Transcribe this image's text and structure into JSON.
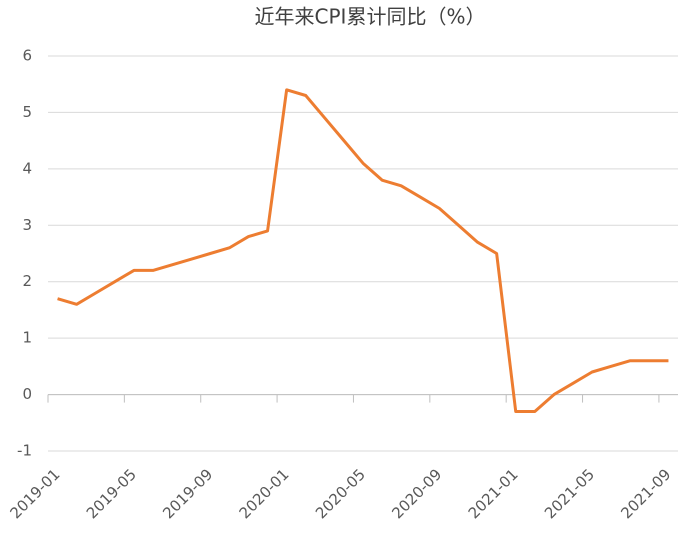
{
  "chart_data": {
    "type": "line",
    "title": "近年来CPI累计同比（%）",
    "categories": [
      "2019-01",
      null,
      null,
      null,
      "2019-05",
      null,
      null,
      null,
      "2019-09",
      null,
      null,
      null,
      "2020-01",
      null,
      null,
      null,
      "2020-05",
      null,
      null,
      null,
      "2020-09",
      null,
      null,
      null,
      "2021-01",
      null,
      null,
      null,
      "2021-05",
      null,
      null,
      null,
      "2021-09"
    ],
    "series": [
      {
        "name": "CPI累计同比",
        "color": "#ed7d31",
        "values": [
          1.7,
          1.6,
          1.8,
          2.0,
          2.2,
          2.2,
          2.3,
          2.4,
          2.5,
          2.6,
          2.8,
          2.9,
          5.4,
          5.3,
          4.9,
          4.5,
          4.1,
          3.8,
          3.7,
          3.5,
          3.3,
          3.0,
          2.7,
          2.5,
          -0.3,
          -0.3,
          0.0,
          0.2,
          0.4,
          0.5,
          0.6,
          0.6,
          0.6
        ]
      }
    ],
    "ylim": [
      -1,
      6
    ],
    "yticks": [
      -1,
      0,
      1,
      2,
      3,
      4,
      5,
      6
    ],
    "grid": true
  }
}
